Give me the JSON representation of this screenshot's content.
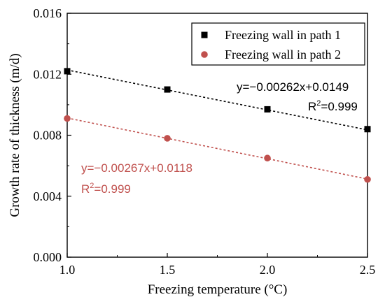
{
  "chart_data": {
    "type": "scatter",
    "xlabel": "Freezing temperature (°C)",
    "ylabel": "Growth rate of thickness (m/d)",
    "xlim": [
      1.0,
      2.5
    ],
    "ylim": [
      0.0,
      0.016
    ],
    "x_ticks": [
      "1.0",
      "1.5",
      "2.0",
      "2.5"
    ],
    "y_ticks": [
      "0.000",
      "0.004",
      "0.008",
      "0.012",
      "0.016"
    ],
    "grid": false,
    "legend_position": "top-right",
    "series": [
      {
        "name": "Freezing wall in path 1",
        "marker": "square",
        "color": "#000000",
        "x": [
          1.0,
          1.5,
          2.0,
          2.5
        ],
        "y": [
          0.0122,
          0.011,
          0.0097,
          0.0084
        ],
        "fit": {
          "slope": -0.00262,
          "intercept": 0.0149,
          "equation": "y=−0.00262x+0.0149",
          "r2_prefix": "R",
          "r2_sup": "2",
          "r2_value": "=0.999"
        }
      },
      {
        "name": "Freezing wall in path 2",
        "marker": "circle",
        "color": "#c0504d",
        "x": [
          1.0,
          1.5,
          2.0,
          2.5
        ],
        "y": [
          0.0091,
          0.0078,
          0.0065,
          0.0051
        ],
        "fit": {
          "slope": -0.00267,
          "intercept": 0.0118,
          "equation": "y=−0.00267x+0.0118",
          "r2_prefix": "R",
          "r2_sup": "2",
          "r2_value": "=0.999"
        }
      }
    ]
  }
}
